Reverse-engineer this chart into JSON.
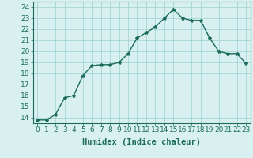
{
  "x": [
    0,
    1,
    2,
    3,
    4,
    5,
    6,
    7,
    8,
    9,
    10,
    11,
    12,
    13,
    14,
    15,
    16,
    17,
    18,
    19,
    20,
    21,
    22,
    23
  ],
  "y": [
    13.8,
    13.8,
    14.3,
    15.8,
    16.0,
    17.8,
    18.7,
    18.8,
    18.8,
    19.0,
    19.8,
    21.2,
    21.7,
    22.2,
    23.0,
    23.8,
    23.0,
    22.8,
    22.8,
    21.2,
    20.0,
    19.8,
    19.8,
    18.9
  ],
  "line_color": "#1a6b5a",
  "marker": "*",
  "marker_size": 3,
  "bg_color": "#d8f0f0",
  "grid_color": "#9ecece",
  "xlabel": "Humidex (Indice chaleur)",
  "ylabel_ticks": [
    14,
    15,
    16,
    17,
    18,
    19,
    20,
    21,
    22,
    23,
    24
  ],
  "ylim": [
    13.5,
    24.5
  ],
  "xlim": [
    -0.5,
    23.5
  ],
  "xticks": [
    0,
    1,
    2,
    3,
    4,
    5,
    6,
    7,
    8,
    9,
    10,
    11,
    12,
    13,
    14,
    15,
    16,
    17,
    18,
    19,
    20,
    21,
    22,
    23
  ],
  "line_width": 1.0,
  "xlabel_fontsize": 7.5,
  "tick_fontsize": 6.5
}
